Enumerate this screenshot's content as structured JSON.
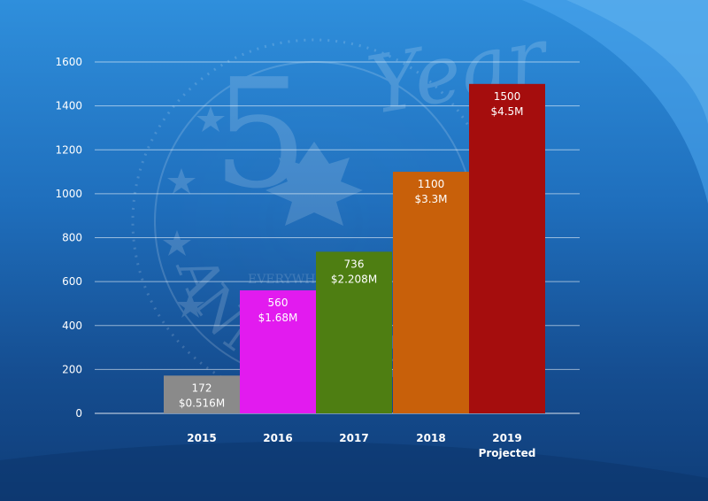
{
  "chart_data": {
    "type": "bar",
    "categories": [
      "2015",
      "2016",
      "2017",
      "2018",
      "2019"
    ],
    "category_sublabels": [
      "",
      "",
      "",
      "",
      "Projected"
    ],
    "values": [
      172,
      560,
      736,
      1100,
      1500
    ],
    "value_labels": [
      "172",
      "560",
      "736",
      "1100",
      "1500"
    ],
    "amount_labels": [
      "$0.516M",
      "$1.68M",
      "$2.208M",
      "$3.3M",
      "$4.5M"
    ],
    "colors": [
      "#8a8a8a",
      "#e21bef",
      "#4e7e12",
      "#c8600a",
      "#a50d0d"
    ],
    "ylim": [
      0,
      1600
    ],
    "yticks": [
      0,
      200,
      400,
      600,
      800,
      1000,
      1200,
      1400,
      1600
    ],
    "grid": true,
    "xlabel": "",
    "ylabel": "",
    "title": ""
  },
  "watermark": {
    "big_number": "5",
    "script_word": "Year",
    "arc_text": "ANNIVERSARY",
    "small_text": "EVERYWHERE"
  }
}
